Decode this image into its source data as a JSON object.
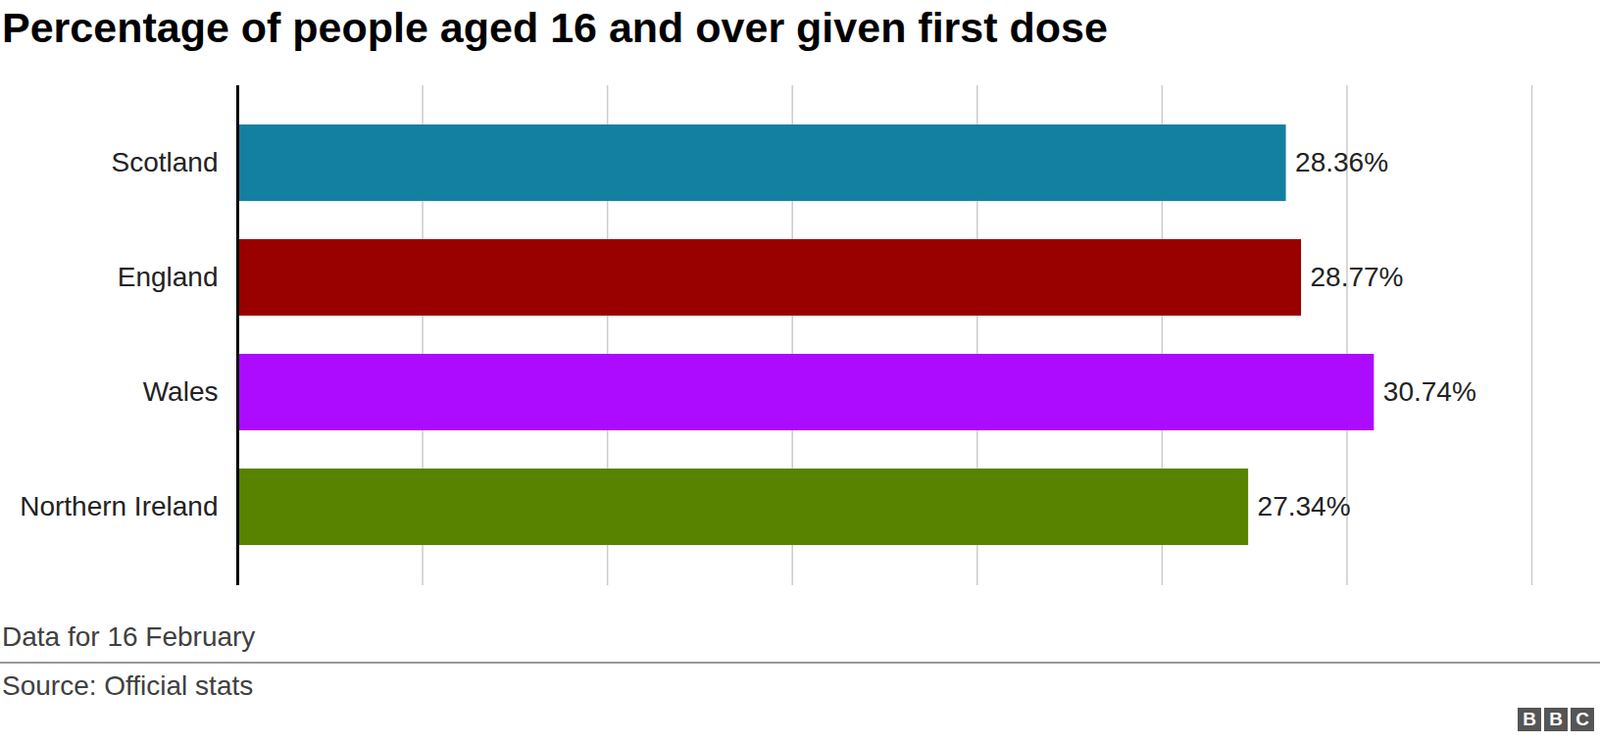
{
  "chart_data": {
    "type": "bar",
    "orientation": "horizontal",
    "title": "Percentage of people aged 16 and over given first dose",
    "caption": "Data for 16 February",
    "source": "Source: Official stats",
    "logo": "BBC",
    "categories": [
      "Scotland",
      "England",
      "Wales",
      "Northern Ireland"
    ],
    "values": [
      28.36,
      28.77,
      30.74,
      27.34
    ],
    "value_labels": [
      "28.36%",
      "28.77%",
      "30.74%",
      "27.34%"
    ],
    "colors": [
      "#1380a1",
      "#990000",
      "#ac0bff",
      "#588300"
    ],
    "xlim": [
      0,
      35
    ],
    "xticks": [
      0,
      5,
      10,
      15,
      20,
      25,
      30,
      35
    ],
    "grid": true,
    "data_labels": true,
    "tick_labels": "y"
  }
}
